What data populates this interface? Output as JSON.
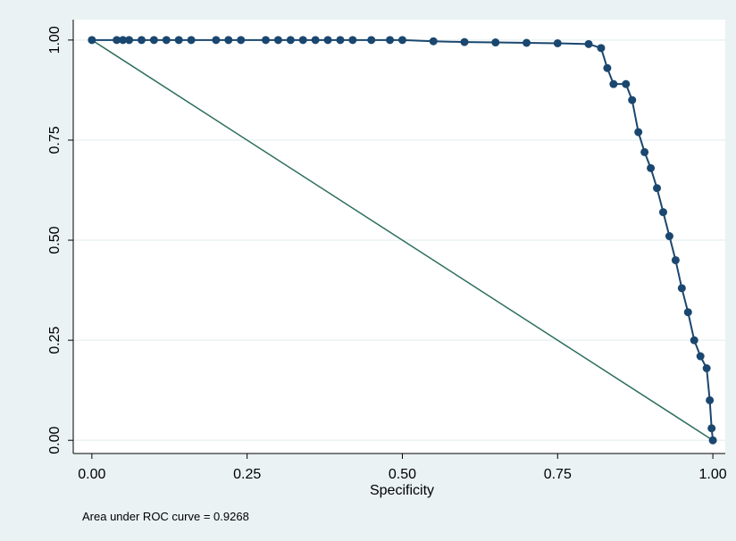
{
  "chart_data": {
    "type": "roc",
    "x_label": "Specificity",
    "note": "Area under ROC curve = 0.9268",
    "x": [
      0,
      0.04,
      0.05,
      0.06,
      0.08,
      0.1,
      0.12,
      0.14,
      0.16,
      0.2,
      0.22,
      0.24,
      0.28,
      0.3,
      0.32,
      0.34,
      0.36,
      0.38,
      0.4,
      0.42,
      0.45,
      0.48,
      0.5,
      0.55,
      0.6,
      0.65,
      0.7,
      0.75,
      0.8,
      0.82,
      0.83,
      0.84,
      0.86,
      0.87,
      0.88,
      0.89,
      0.9,
      0.91,
      0.92,
      0.93,
      0.94,
      0.95,
      0.96,
      0.97,
      0.98,
      0.99,
      0.995,
      0.998,
      1.0
    ],
    "y": [
      1,
      1,
      1,
      1,
      1,
      1,
      1,
      1,
      1,
      1,
      1,
      1,
      1,
      1,
      1,
      1,
      1,
      1,
      1,
      1,
      1,
      1,
      1,
      0.997,
      0.995,
      0.994,
      0.993,
      0.992,
      0.99,
      0.98,
      0.93,
      0.89,
      0.89,
      0.85,
      0.77,
      0.72,
      0.68,
      0.63,
      0.57,
      0.51,
      0.45,
      0.38,
      0.32,
      0.25,
      0.21,
      0.18,
      0.1,
      0.03,
      0
    ],
    "color": "#1a476f",
    "reference_x": [
      0,
      1
    ],
    "reference_y": [
      1,
      0
    ],
    "reference_color": "#2d6e5e",
    "xlim": [
      -0.03,
      1.02
    ],
    "ylim": [
      -0.033,
      1.051
    ],
    "xticks": [
      {
        "value": 0,
        "label": "0.00"
      },
      {
        "value": 0.25,
        "label": "0.25"
      },
      {
        "value": 0.5,
        "label": "0.50"
      },
      {
        "value": 0.75,
        "label": "0.75"
      },
      {
        "value": 1,
        "label": "1.00"
      }
    ],
    "yticks": [
      {
        "value": 0,
        "label": "0.00"
      },
      {
        "value": 0.25,
        "label": "0.25"
      },
      {
        "value": 0.5,
        "label": "0.50"
      },
      {
        "value": 0.75,
        "label": "0.75"
      },
      {
        "value": 1,
        "label": "1.00"
      }
    ],
    "grid": true
  }
}
